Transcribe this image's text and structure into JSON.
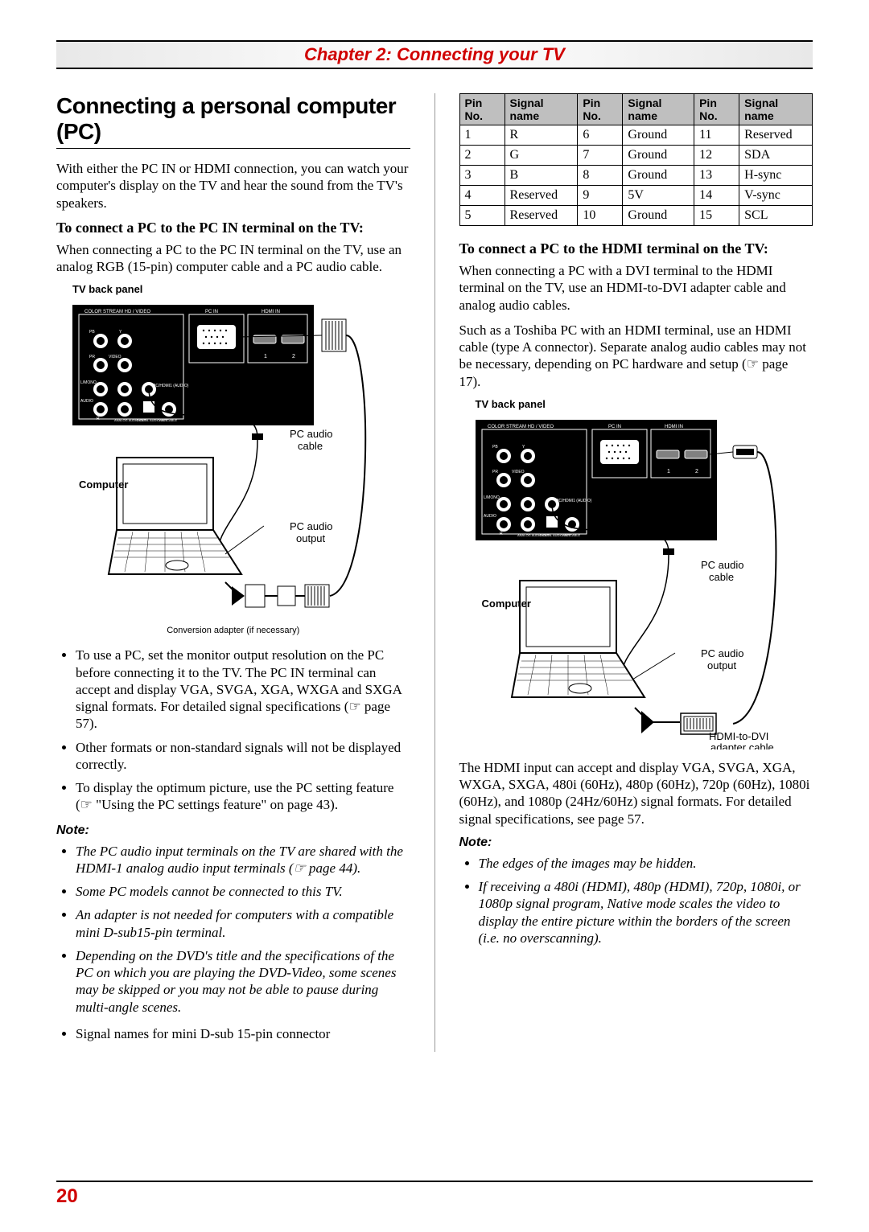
{
  "chapter": "Chapter 2: Connecting your TV",
  "section_title": "Connecting a personal computer (PC)",
  "intro": "With either the PC IN or HDMI connection, you can watch your computer's display on the TV and hear the sound from the TV's speakers.",
  "left": {
    "subhead": "To connect a PC to the PC IN terminal on the TV:",
    "para": "When connecting a PC to the PC IN terminal on the TV, use an analog RGB (15-pin) computer cable and a PC audio cable.",
    "fig_label": "TV back panel",
    "computer_label": "Computer",
    "audio_cable": "PC audio cable",
    "audio_output": "PC audio output",
    "caption": "Conversion adapter (if necessary)",
    "bullets": [
      "To use a PC, set the monitor output resolution on the PC before connecting it to the TV. The PC IN terminal can accept and display VGA, SVGA, XGA, WXGA and SXGA signal formats. For detailed signal specifications (☞ page 57).",
      "Other formats or non-standard signals will not be displayed correctly.",
      "To display the optimum picture, use the PC setting feature (☞ \"Using the PC settings feature\" on page 43)."
    ],
    "note_head": "Note:",
    "notes": [
      "The PC audio input terminals on the TV are shared with the HDMI-1 analog audio input terminals (☞ page 44).",
      "Some PC models cannot be connected to this TV.",
      "An adapter is not needed for computers with a compatible mini D-sub15-pin terminal.",
      "Depending on the DVD's title and the specifications of the PC on which you are playing the DVD-Video, some scenes may be skipped or you may not be able to pause during multi-angle scenes."
    ],
    "signal_line": "Signal names for mini D-sub 15-pin connector"
  },
  "right": {
    "table": {
      "headers": [
        "Pin No.",
        "Signal name",
        "Pin No.",
        "Signal name",
        "Pin No.",
        "Signal name"
      ],
      "rows": [
        [
          "1",
          "R",
          "6",
          "Ground",
          "11",
          "Reserved"
        ],
        [
          "2",
          "G",
          "7",
          "Ground",
          "12",
          "SDA"
        ],
        [
          "3",
          "B",
          "8",
          "Ground",
          "13",
          "H-sync"
        ],
        [
          "4",
          "Reserved",
          "9",
          "5V",
          "14",
          "V-sync"
        ],
        [
          "5",
          "Reserved",
          "10",
          "Ground",
          "15",
          "SCL"
        ]
      ]
    },
    "subhead": "To connect a PC to the HDMI terminal on the TV:",
    "para1": "When connecting a PC with a DVI terminal to the HDMI terminal on the TV, use an HDMI-to-DVI adapter cable and analog audio cables.",
    "para2": "Such as a Toshiba PC with an HDMI terminal, use an HDMI cable (type A connector). Separate analog audio cables may not be necessary, depending on PC hardware and setup (☞ page 17).",
    "fig_label": "TV back panel",
    "computer_label": "Computer",
    "audio_cable": "PC audio cable",
    "audio_output": "PC audio output",
    "adapter_cable": "HDMI-to-DVI adapter cable",
    "para3": "The HDMI input can accept and display VGA, SVGA, XGA, WXGA, SXGA, 480i (60Hz), 480p (60Hz), 720p (60Hz), 1080i (60Hz), and 1080p (24Hz/60Hz) signal formats. For detailed signal specifications, see page 57.",
    "note_head": "Note:",
    "notes": [
      "The edges of the images may be hidden.",
      "If receiving a 480i (HDMI), 480p (HDMI), 720p, 1080i, or 1080p signal program, Native mode scales the video to display the entire picture within the borders of the screen (i.e. no overscanning)."
    ]
  },
  "page_number": "20",
  "colors": {
    "accent": "#d00000",
    "header_bg": "#bfbfbf",
    "rule": "#000000"
  }
}
